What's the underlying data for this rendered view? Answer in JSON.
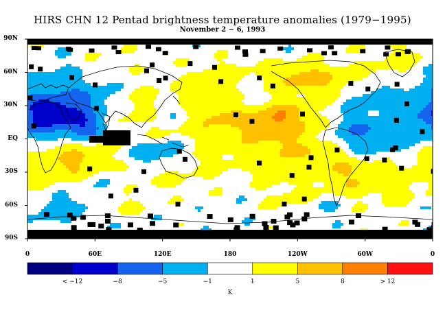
{
  "title": "HIRS CHN 12 Pentad brightness temperature anomalies (1979−1995)",
  "subtitle": "November 2 − 6, 1993",
  "lat_labels": [
    "90N",
    "60N",
    "30N",
    "EQ",
    "30S",
    "60S",
    "90S"
  ],
  "lon_labels": [
    "0",
    "60E",
    "120E",
    "180",
    "120W",
    "60W",
    "0"
  ],
  "colorbar": {
    "colors": [
      "#000080",
      "#0000cd",
      "#1464f0",
      "#00b0f0",
      "#ffffff",
      "#ffff00",
      "#ffc000",
      "#ff8000",
      "#ff1010"
    ],
    "labels": [
      "< −12",
      "−8",
      "−5",
      "−1",
      "1",
      "5",
      "8",
      "> 12"
    ],
    "unit": "K"
  },
  "colors": {
    "missing": "#000000",
    "coast": "#000000"
  }
}
